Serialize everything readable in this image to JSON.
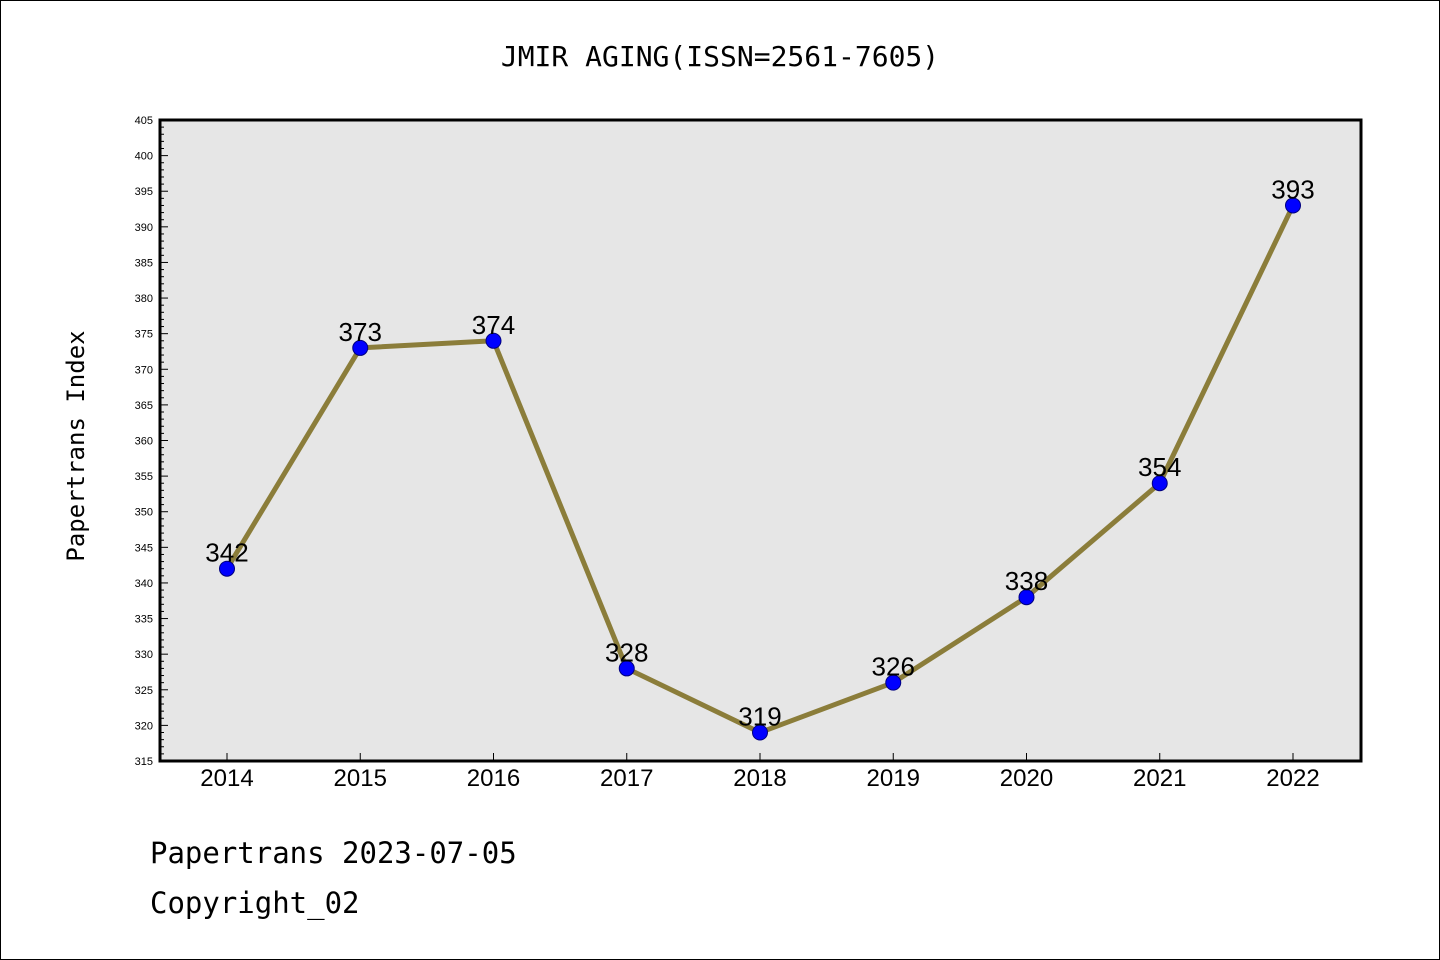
{
  "chart_data": {
    "type": "line",
    "title": "JMIR AGING(ISSN=2561-7605)",
    "xlabel": "",
    "ylabel": "Papertrans Index",
    "categories": [
      "2014",
      "2015",
      "2016",
      "2017",
      "2018",
      "2019",
      "2020",
      "2021",
      "2022"
    ],
    "series": [
      {
        "values": [
          342,
          373,
          374,
          328,
          319,
          326,
          338,
          354,
          393
        ]
      }
    ],
    "data_labels": [
      "342",
      "373",
      "374",
      "328",
      "319",
      "326",
      "338",
      "354",
      "393"
    ],
    "ylim": [
      315,
      405
    ],
    "yticks": [
      "315",
      "320",
      "325",
      "330",
      "335",
      "340",
      "345",
      "350",
      "355",
      "360",
      "365",
      "370",
      "375",
      "380",
      "385",
      "390",
      "395",
      "400",
      "405"
    ],
    "grid": false,
    "legend": "none",
    "colors": {
      "plot_background": "#e6e6e6",
      "line": "#8b7d3a",
      "marker": "#0000ff",
      "marker_edge": "#000080",
      "axes": "#000000"
    }
  },
  "footer": {
    "date_line": "Papertrans 2023-07-05",
    "copyright_line": "Copyright_02"
  }
}
